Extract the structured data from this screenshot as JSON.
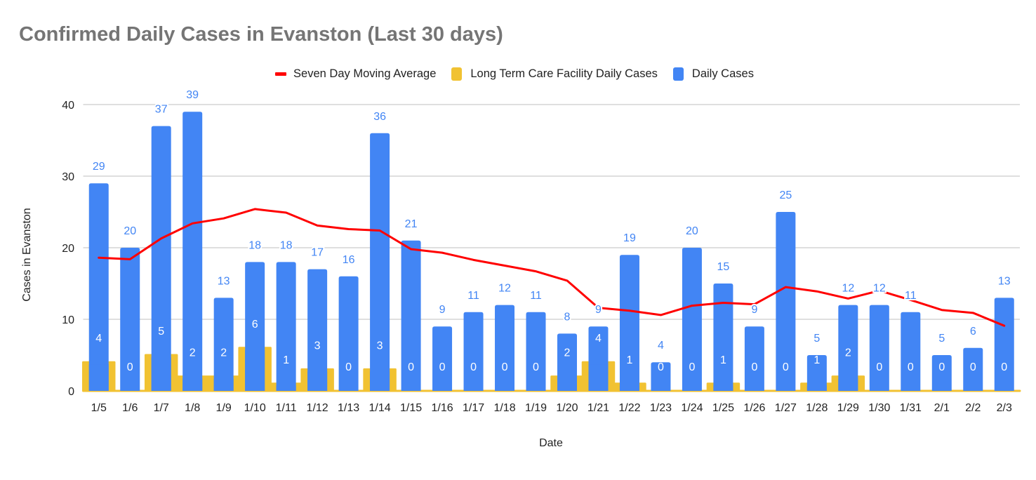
{
  "chart_data": {
    "type": "bar",
    "title": "Confirmed Daily Cases in Evanston (Last 30 days)",
    "xlabel": "Date",
    "ylabel": "Cases in Evanston",
    "ylim": [
      0,
      40
    ],
    "yticks": [
      0,
      10,
      20,
      30,
      40
    ],
    "grid": true,
    "legend_position": "top",
    "categories": [
      "1/5",
      "1/6",
      "1/7",
      "1/8",
      "1/9",
      "1/10",
      "1/11",
      "1/12",
      "1/13",
      "1/14",
      "1/15",
      "1/16",
      "1/17",
      "1/18",
      "1/19",
      "1/20",
      "1/21",
      "1/22",
      "1/23",
      "1/24",
      "1/25",
      "1/26",
      "1/27",
      "1/28",
      "1/29",
      "1/30",
      "1/31",
      "2/1",
      "2/2",
      "2/3"
    ],
    "series": [
      {
        "name": "Seven Day Moving Average",
        "kind": "line",
        "color": "#ff0000",
        "values": [
          18.6,
          18.4,
          21.3,
          23.4,
          24.1,
          25.4,
          24.9,
          23.1,
          22.6,
          22.4,
          19.8,
          19.3,
          18.3,
          17.5,
          16.7,
          15.4,
          11.6,
          11.2,
          10.6,
          11.9,
          12.3,
          12.1,
          14.5,
          13.9,
          12.9,
          14.0,
          12.7,
          11.3,
          10.9,
          9.1
        ]
      },
      {
        "name": "Long Term Care Facility Daily Cases",
        "kind": "stepped-area",
        "color": "#f1c232",
        "values": [
          4,
          0,
          5,
          2,
          2,
          6,
          1,
          3,
          0,
          3,
          0,
          0,
          0,
          0,
          0,
          2,
          4,
          1,
          0,
          0,
          1,
          0,
          0,
          1,
          2,
          0,
          0,
          0,
          0,
          0
        ]
      },
      {
        "name": "Daily Cases",
        "kind": "bar",
        "color": "#4285f4",
        "values": [
          29,
          20,
          37,
          39,
          13,
          18,
          18,
          17,
          16,
          36,
          21,
          9,
          11,
          12,
          11,
          8,
          9,
          19,
          4,
          20,
          15,
          9,
          25,
          5,
          12,
          12,
          11,
          5,
          6,
          13
        ]
      }
    ]
  },
  "colors": {
    "title": "#757575",
    "gridline": "#cccccc",
    "axis_text": "#222222",
    "data_label_daily": "#4285f4",
    "data_label_ltc": "#ffffff"
  }
}
